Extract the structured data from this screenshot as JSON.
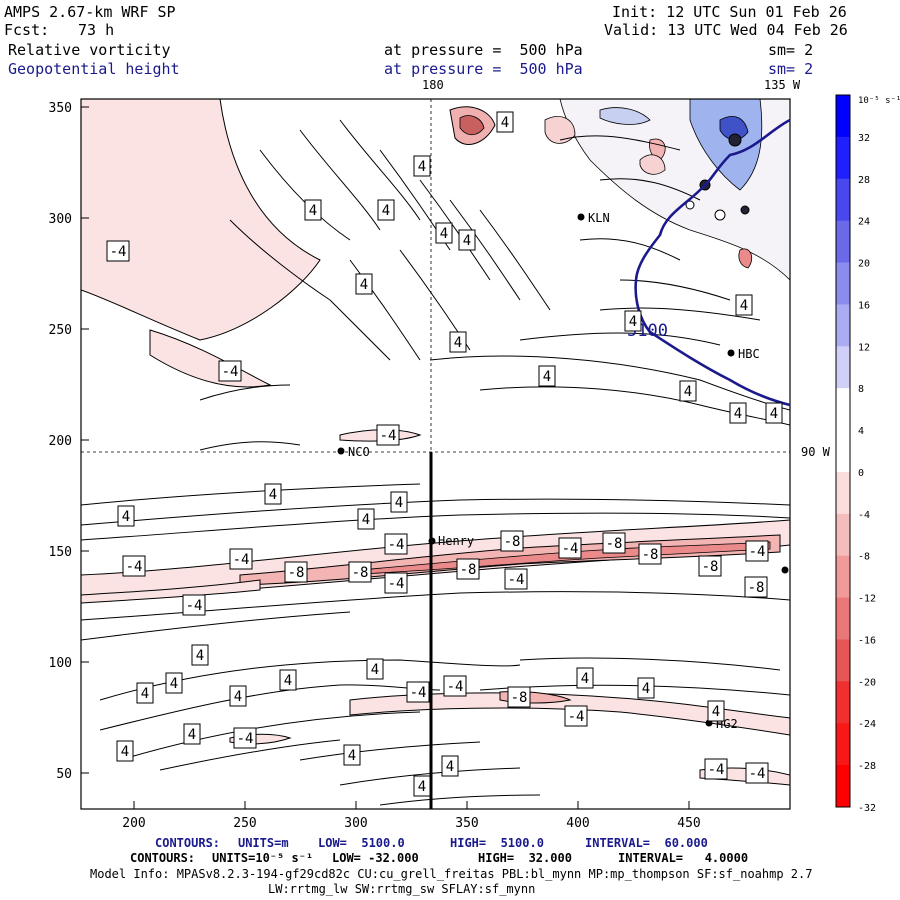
{
  "header": {
    "model": "AMPS 2.67-km WRF SP",
    "init": "Init: 12 UTC Sun 01 Feb 26",
    "fcst_label": "Fcst:",
    "fcst_value": "73 h",
    "valid": "Valid: 13 UTC Wed 04 Feb 26",
    "field1": "Relative vorticity",
    "field2": "Geopotential height",
    "pressure1": "at pressure =  500 hPa",
    "pressure2": "at pressure =  500 hPa",
    "sm1": "sm= 2",
    "sm2": "sm= 2"
  },
  "map_labels": {
    "lon_180": "180",
    "lon_135w": "135 W",
    "lat_90w": "90 W",
    "stations": [
      "KLN",
      "HBC",
      "NCO",
      "Henry",
      "HG2"
    ],
    "height_contour": "5100"
  },
  "axes": {
    "x_ticks": [
      "200",
      "250",
      "300",
      "350",
      "400",
      "450"
    ],
    "y_ticks": [
      "350",
      "300",
      "250",
      "200",
      "150",
      "100",
      "50"
    ]
  },
  "colorbar": {
    "unit": "10⁻⁵ s⁻¹",
    "labels": [
      "32",
      "28",
      "24",
      "20",
      "16",
      "12",
      "8",
      "4",
      "0",
      "-4",
      "-8",
      "-12",
      "-16",
      "-20",
      "-24",
      "-28",
      "-32"
    ],
    "colors": [
      "#0000ff",
      "#2020ff",
      "#4848ee",
      "#6a6ae8",
      "#8c8cee",
      "#acacf2",
      "#cfcff8",
      "#ffffff",
      "#ffffff",
      "#fadede",
      "#f5bcbc",
      "#f09a9a",
      "#eb7878",
      "#e65656",
      "#f03030",
      "#f81818",
      "#ff0000"
    ]
  },
  "contour_labels": {
    "pos": [
      "4"
    ],
    "neg4": [
      "-4"
    ],
    "neg8": [
      "-8"
    ]
  },
  "footer": {
    "c1_label": "CONTOURS:",
    "c1_units": "UNITS=m",
    "c1_low": "LOW=  5100.0",
    "c1_high": "HIGH=  5100.0",
    "c1_interval": "INTERVAL=  60.000",
    "c2_label": "CONTOURS:",
    "c2_units": "UNITS=10⁻⁵ s⁻¹",
    "c2_low": "LOW= -32.000",
    "c2_high": "HIGH=  32.000",
    "c2_interval": "INTERVAL=   4.0000",
    "model_info": "Model Info: MPASv8.2.3-194-gf29cd82c CU:cu_grell_freitas PBL:bl_mynn MP:mp_thompson SF:sf_noahmp 2.7",
    "model_info2": "LW:rrtmg_lw SW:rrtmg_sw SFLAY:sf_mynn"
  }
}
